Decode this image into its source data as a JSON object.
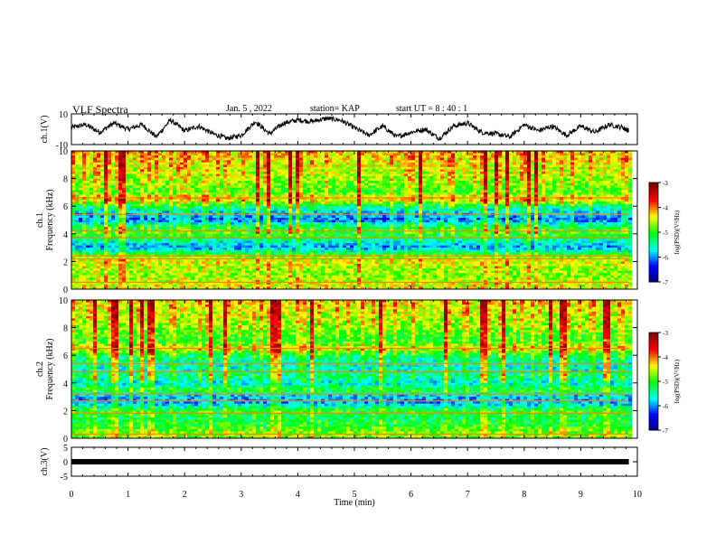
{
  "header": {
    "title": "VLF Spectra",
    "date": "Jan. 5 , 2022",
    "station": "station= KAP",
    "start": "start  UT  =   8  : 40 : 1"
  },
  "colors": {
    "colormap": [
      "#00007f",
      "#0000ff",
      "#00ffff",
      "#00ff00",
      "#ffff00",
      "#ff0000",
      "#7f0000"
    ],
    "trace": "#000000"
  },
  "chart_data": [
    {
      "type": "line",
      "name": "ch.1 waveform",
      "ylabel": "ch.1(V)",
      "ylim": [
        -10,
        10
      ],
      "yticks": [
        "10",
        "-10"
      ],
      "xlim": [
        0,
        10
      ],
      "x": [
        0,
        0.25,
        0.5,
        0.75,
        1,
        1.25,
        1.5,
        1.75,
        2,
        2.25,
        2.5,
        2.75,
        3,
        3.25,
        3.5,
        3.75,
        4,
        4.25,
        4.5,
        4.75,
        5,
        5.25,
        5.5,
        5.75,
        6,
        6.25,
        6.5,
        6.75,
        7,
        7.25,
        7.5,
        7.75,
        8,
        8.25,
        8.5,
        8.75,
        9,
        9.25,
        9.5,
        9.75,
        9.85
      ],
      "y": [
        1,
        3,
        -2,
        4,
        0,
        3,
        -5,
        6,
        -1,
        2,
        -3,
        -6,
        -4,
        5,
        -3,
        4,
        6,
        5,
        7,
        6,
        1,
        -4,
        2,
        -5,
        -2,
        0,
        -6,
        2,
        4,
        -2,
        -3,
        -5,
        3,
        -1,
        2,
        -4,
        2,
        -2,
        3,
        1,
        -1
      ]
    },
    {
      "type": "heatmap",
      "name": "ch.1 spectrogram",
      "ylabel": "ch.1\nFrequency (kHz)",
      "xlim": [
        0,
        10
      ],
      "ylim": [
        0,
        10
      ],
      "yticks": [
        "0",
        "2",
        "4",
        "6",
        "8",
        "10"
      ],
      "zlabel": "log(PSD)(V²/Hz)",
      "zlim": [
        -7,
        -3
      ],
      "zticks": [
        "-3",
        "-4",
        "-5",
        "-6",
        "-7"
      ],
      "freq_khz": [
        10,
        9.5,
        9,
        8.5,
        8,
        7.5,
        7,
        6.5,
        6,
        5.5,
        5,
        4.5,
        4,
        3.5,
        3,
        2.5,
        2,
        1.5,
        1,
        0.5,
        0
      ],
      "log_psd": [
        -4.2,
        -4.3,
        -4.4,
        -4.5,
        -4.6,
        -4.8,
        -4.9,
        -4.2,
        -5.3,
        -5.8,
        -6.1,
        -5.2,
        -4.9,
        -5.5,
        -6.0,
        -5.0,
        -4.4,
        -4.6,
        -4.7,
        -4.5,
        -4.4
      ],
      "lines_khz": [
        6.6,
        5.4,
        4.2,
        3.7,
        2.4,
        2.2,
        0.5
      ]
    },
    {
      "type": "heatmap",
      "name": "ch.2 spectrogram",
      "ylabel": "ch.2\nFrequency (kHz)",
      "xlim": [
        0,
        10
      ],
      "ylim": [
        0,
        10
      ],
      "yticks": [
        "0",
        "2",
        "4",
        "6",
        "8",
        "10"
      ],
      "zlabel": "log(PSD)(V²/Hz)",
      "zlim": [
        -7,
        -3
      ],
      "zticks": [
        "-3",
        "-4",
        "-5",
        "-6",
        "-7"
      ],
      "freq_khz": [
        10,
        9.5,
        9,
        8.5,
        8,
        7.5,
        7,
        6.5,
        6,
        5.5,
        5,
        4.5,
        4,
        3.5,
        3,
        2.5,
        2,
        1.5,
        1,
        0.5,
        0
      ],
      "log_psd": [
        -4.3,
        -4.4,
        -4.5,
        -4.6,
        -4.7,
        -4.9,
        -5.0,
        -4.4,
        -5.2,
        -5.5,
        -5.6,
        -5.3,
        -5.7,
        -5.0,
        -5.9,
        -5.9,
        -5.0,
        -5.2,
        -5.1,
        -4.8,
        -4.7
      ],
      "lines_khz": [
        6.5,
        5.4,
        4.8,
        3.2,
        2.7,
        1.8,
        0.3
      ]
    },
    {
      "type": "line",
      "name": "ch.3 waveform",
      "ylabel": "ch.3(V)",
      "ylim": [
        -5,
        5
      ],
      "yticks": [
        "5",
        "0",
        "-5"
      ],
      "xlim": [
        0,
        10
      ],
      "x": [
        0,
        9.85
      ],
      "y": [
        0,
        0
      ]
    }
  ],
  "xaxis": {
    "label": "Time  (min)",
    "ticks": [
      "0",
      "1",
      "2",
      "3",
      "4",
      "5",
      "6",
      "7",
      "8",
      "9",
      "10"
    ]
  }
}
